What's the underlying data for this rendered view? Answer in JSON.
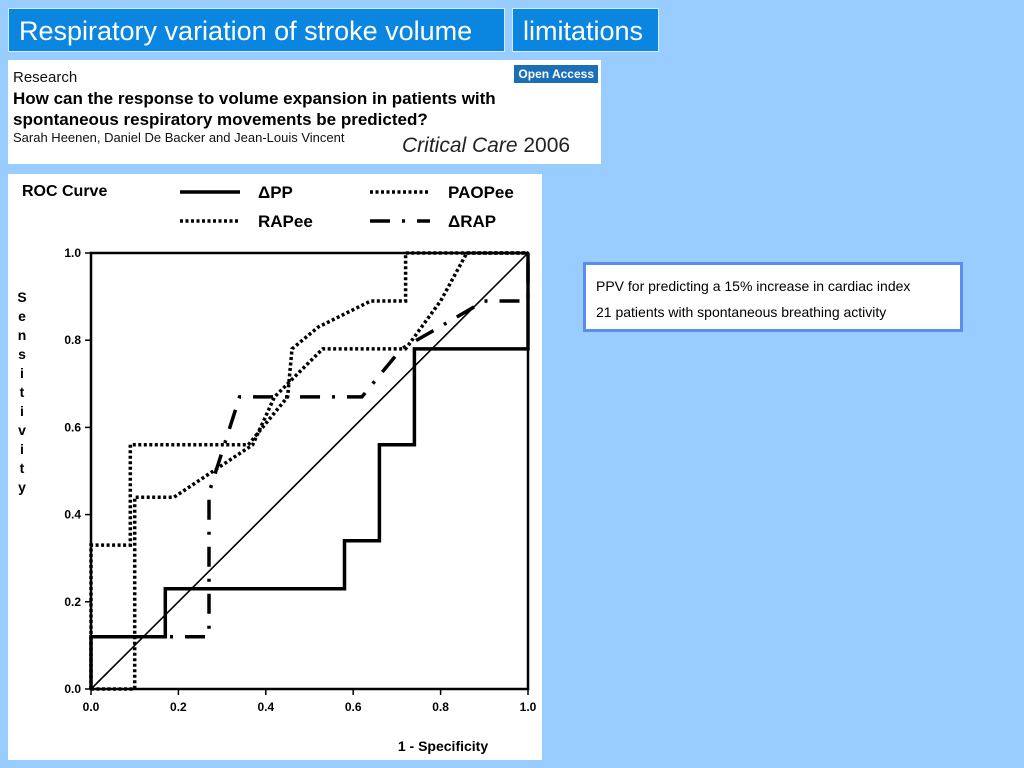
{
  "slide": {
    "title": "Respiratory variation of stroke volume",
    "tab": "limitations"
  },
  "paper": {
    "label": "Research",
    "badge": "Open Access",
    "headline": "How can the response to volume expansion in patients with spontaneous respiratory movements be predicted?",
    "authors": "Sarah Heenen, Daniel De Backer and Jean-Louis Vincent",
    "journal": "Critical Care",
    "year": "2006"
  },
  "notes": [
    "PPV for predicting a 15% increase in cardiac index",
    "21 patients with spontaneous breathing activity"
  ],
  "chart_data": {
    "type": "line",
    "title": "ROC Curve",
    "xlabel": "1 - Specificity",
    "ylabel": "Sensitivity",
    "xlim": [
      0,
      1
    ],
    "ylim": [
      0,
      1
    ],
    "xticks": [
      "0.0",
      "0.2",
      "0.4",
      "0.6",
      "0.8",
      "1.0"
    ],
    "yticks": [
      "0.0",
      "0.2",
      "0.4",
      "0.6",
      "0.8",
      "1.0"
    ],
    "grid": false,
    "legend": "top",
    "series": [
      {
        "name": "ΔPP",
        "style": "solid-thick",
        "color": "#000000",
        "points": [
          [
            0,
            0
          ],
          [
            0,
            0.12
          ],
          [
            0.17,
            0.12
          ],
          [
            0.17,
            0.23
          ],
          [
            0.58,
            0.23
          ],
          [
            0.58,
            0.34
          ],
          [
            0.66,
            0.34
          ],
          [
            0.66,
            0.56
          ],
          [
            0.74,
            0.56
          ],
          [
            0.74,
            0.78
          ],
          [
            1,
            0.78
          ],
          [
            1,
            1
          ]
        ]
      },
      {
        "name": "PAOPee",
        "style": "dotted",
        "color": "#000000",
        "points": [
          [
            0,
            0
          ],
          [
            0,
            0.33
          ],
          [
            0.09,
            0.33
          ],
          [
            0.09,
            0.56
          ],
          [
            0.3,
            0.56
          ],
          [
            0.36,
            0.56
          ],
          [
            0.45,
            0.67
          ],
          [
            0.46,
            0.78
          ],
          [
            0.52,
            0.83
          ],
          [
            0.64,
            0.89
          ],
          [
            0.72,
            0.89
          ],
          [
            0.72,
            1
          ],
          [
            1,
            1
          ]
        ]
      },
      {
        "name": "RAPee",
        "style": "dotted",
        "color": "#000000",
        "points": [
          [
            0,
            0
          ],
          [
            0.1,
            0
          ],
          [
            0.1,
            0.44
          ],
          [
            0.19,
            0.44
          ],
          [
            0.25,
            0.48
          ],
          [
            0.37,
            0.56
          ],
          [
            0.42,
            0.67
          ],
          [
            0.53,
            0.78
          ],
          [
            0.72,
            0.78
          ],
          [
            0.8,
            0.89
          ],
          [
            0.86,
            1
          ],
          [
            1,
            1
          ]
        ]
      },
      {
        "name": "ΔRAP",
        "style": "dashdot",
        "color": "#000000",
        "points": [
          [
            0,
            0.12
          ],
          [
            0.21,
            0.12
          ],
          [
            0.27,
            0.12
          ],
          [
            0.27,
            0.45
          ],
          [
            0.34,
            0.67
          ],
          [
            0.62,
            0.67
          ],
          [
            0.71,
            0.78
          ],
          [
            0.78,
            0.82
          ],
          [
            0.9,
            0.89
          ],
          [
            1,
            0.89
          ],
          [
            1,
            1
          ]
        ]
      }
    ],
    "reference_line": [
      [
        0,
        0
      ],
      [
        1,
        1
      ]
    ]
  }
}
